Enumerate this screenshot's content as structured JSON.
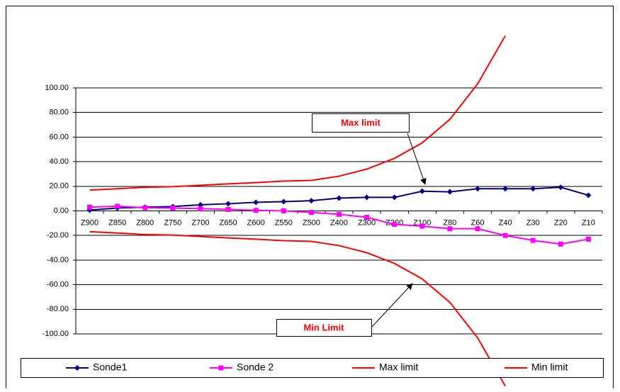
{
  "chart_data": {
    "type": "line",
    "categories": [
      "Z900",
      "Z850",
      "Z800",
      "Z750",
      "Z700",
      "Z650",
      "Z600",
      "Z550",
      "Z500",
      "Z400",
      "Z300",
      "Z200",
      "Z100",
      "Z80",
      "Z60",
      "Z40",
      "Z30",
      "Z20",
      "Z10"
    ],
    "series": [
      {
        "name": "Sonde1",
        "color": "#000080",
        "marker": "diamond",
        "values": [
          0.6,
          2.3,
          3.0,
          3.5,
          5.0,
          5.8,
          7.0,
          7.5,
          8.3,
          10.4,
          11.0,
          11.0,
          16.0,
          15.5,
          18.0,
          18.0,
          18.0,
          19.2,
          12.7
        ]
      },
      {
        "name": "Sonde 2",
        "color": "#ff00ff",
        "marker": "square",
        "values": [
          3.0,
          3.8,
          2.5,
          2.3,
          1.8,
          1.2,
          0.4,
          0.0,
          -1.2,
          -2.8,
          -5.2,
          -11.0,
          -12.4,
          -14.5,
          -14.5,
          -20.0,
          -24.0,
          -27.0,
          -23.0
        ]
      },
      {
        "name": "Max limit",
        "color": "#ff0000",
        "marker": "none",
        "values": [
          16.9,
          18.0,
          19.2,
          19.7,
          20.8,
          22.0,
          23.0,
          24.2,
          24.8,
          28.2,
          34.0,
          42.7,
          55.3,
          74.4,
          103.2,
          142.4,
          null,
          null,
          null
        ]
      },
      {
        "name": "Min limit",
        "color": "#ff0000",
        "marker": "none",
        "values": [
          -16.9,
          -18.0,
          -19.2,
          -19.7,
          -20.8,
          -22.0,
          -23.0,
          -24.2,
          -24.8,
          -28.2,
          -34.0,
          -42.7,
          -55.3,
          -74.4,
          -103.2,
          -142.4,
          null,
          null,
          null
        ]
      }
    ],
    "ylim": [
      -100,
      100
    ],
    "yticks": [
      {
        "value": -100,
        "label": "-100.00"
      },
      {
        "value": -80,
        "label": "-80.00"
      },
      {
        "value": -60,
        "label": "-60.00"
      },
      {
        "value": -40,
        "label": "-40.00"
      },
      {
        "value": -20,
        "label": "-20.00"
      },
      {
        "value": 0,
        "label": "0.00"
      },
      {
        "value": 20,
        "label": "20.00"
      },
      {
        "value": 40,
        "label": "40.00"
      },
      {
        "value": 60,
        "label": "60.00"
      },
      {
        "value": 80,
        "label": "80.00"
      },
      {
        "value": 100,
        "label": "100.00"
      }
    ],
    "grid": true,
    "legend": "bottom",
    "annotations": [
      "Max limit",
      "Min Limit"
    ]
  }
}
